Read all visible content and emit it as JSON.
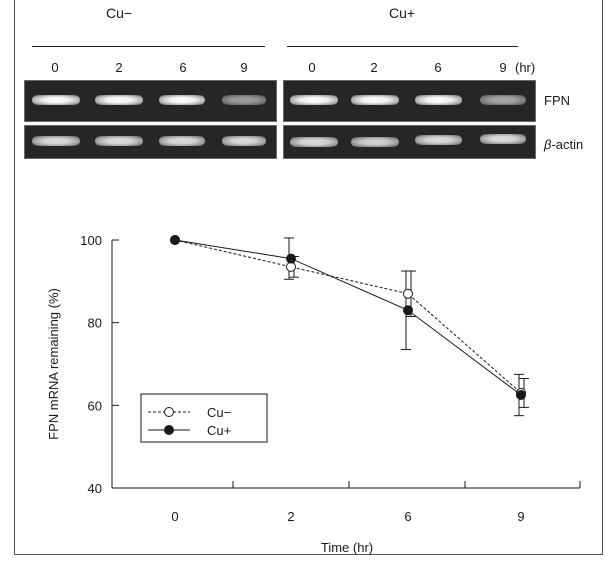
{
  "blot": {
    "group_left": "Cu−",
    "group_right": "Cu+",
    "lanes_left": [
      "0",
      "2",
      "6",
      "9"
    ],
    "lanes_right": [
      "0",
      "2",
      "6",
      "9"
    ],
    "unit": "(hr)",
    "row_labels": {
      "fpn": "FPN",
      "beta_symbol": "β",
      "beta_text": "-actin"
    },
    "band_intensity": {
      "fpn_cu_minus": [
        1.0,
        0.95,
        0.9,
        0.55
      ],
      "fpn_cu_plus": [
        1.0,
        0.95,
        0.9,
        0.6
      ],
      "actin_cu_minus": [
        0.85,
        0.85,
        0.85,
        0.85
      ],
      "actin_cu_plus": [
        0.85,
        0.8,
        0.85,
        0.85
      ]
    }
  },
  "chart_data": {
    "type": "line",
    "ylabel": "FPN mRNA remaining (%)",
    "xlabel": "Time (hr)",
    "categories": [
      "0",
      "2",
      "6",
      "9"
    ],
    "ylim": [
      40,
      100
    ],
    "yticks": [
      "100",
      "80",
      "60",
      "40"
    ],
    "series": [
      {
        "name": "Cu−",
        "values": [
          100,
          93.5,
          87,
          63
        ],
        "errors": [
          0,
          2.5,
          5.5,
          3.5
        ],
        "marker": "open-circle",
        "line": "dashed"
      },
      {
        "name": "Cu+",
        "values": [
          100,
          95.5,
          83,
          62.5
        ],
        "errors": [
          0,
          5,
          9.5,
          5
        ],
        "marker": "filled-circle",
        "line": "solid"
      }
    ],
    "legend": "bottom-left",
    "grid": false
  },
  "colors": {
    "ink": "#1a1a1a",
    "gel": "#262626",
    "band": "#f2f2f2"
  }
}
